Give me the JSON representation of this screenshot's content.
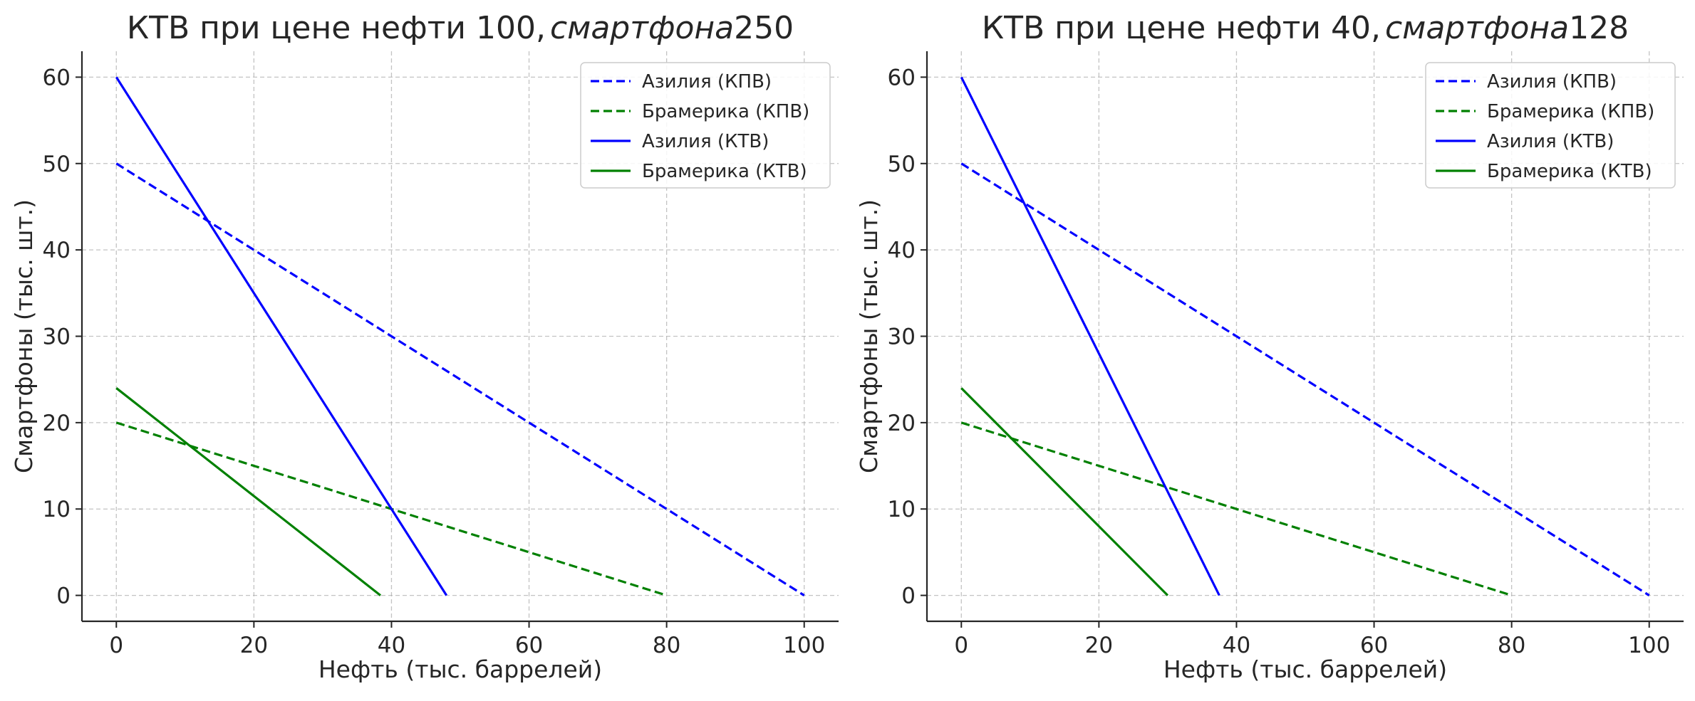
{
  "chart_data": [
    {
      "type": "line",
      "title": {
        "main": "КТВ при цене нефти 100,",
        "italic": "смартфона",
        "tail": "250"
      },
      "xlabel": "Нефть (тыс. баррелей)",
      "ylabel": "Смартфоны (тыс. шт.)",
      "xlim": [
        -5,
        105
      ],
      "ylim": [
        -3,
        63
      ],
      "xticks": [
        0,
        20,
        40,
        60,
        80,
        100
      ],
      "yticks": [
        0,
        10,
        20,
        30,
        40,
        50,
        60
      ],
      "grid": true,
      "legend_position": "upper-right",
      "series": [
        {
          "name": "Азилия (КПВ)",
          "color": "#0000ff",
          "style": "dashed",
          "points": [
            [
              0,
              50
            ],
            [
              100,
              0
            ]
          ]
        },
        {
          "name": "Брамерика (КПВ)",
          "color": "#008000",
          "style": "dashed",
          "points": [
            [
              0,
              20
            ],
            [
              80,
              0
            ]
          ]
        },
        {
          "name": "Азилия (КТВ)",
          "color": "#0000ff",
          "style": "solid",
          "points": [
            [
              0,
              60
            ],
            [
              48,
              0
            ]
          ]
        },
        {
          "name": "Брамерика (КТВ)",
          "color": "#008000",
          "style": "solid",
          "points": [
            [
              0,
              24
            ],
            [
              38.4,
              0
            ]
          ]
        }
      ]
    },
    {
      "type": "line",
      "title": {
        "main": "КТВ при цене нефти 40,",
        "italic": "смартфона",
        "tail": "128"
      },
      "xlabel": "Нефть (тыс. баррелей)",
      "ylabel": "Смартфоны (тыс. шт.)",
      "xlim": [
        -5,
        105
      ],
      "ylim": [
        -3,
        63
      ],
      "xticks": [
        0,
        20,
        40,
        60,
        80,
        100
      ],
      "yticks": [
        0,
        10,
        20,
        30,
        40,
        50,
        60
      ],
      "grid": true,
      "legend_position": "upper-right",
      "series": [
        {
          "name": "Азилия (КПВ)",
          "color": "#0000ff",
          "style": "dashed",
          "points": [
            [
              0,
              50
            ],
            [
              100,
              0
            ]
          ]
        },
        {
          "name": "Брамерика (КПВ)",
          "color": "#008000",
          "style": "dashed",
          "points": [
            [
              0,
              20
            ],
            [
              80,
              0
            ]
          ]
        },
        {
          "name": "Азилия (КТВ)",
          "color": "#0000ff",
          "style": "solid",
          "points": [
            [
              0,
              60
            ],
            [
              37.5,
              0
            ]
          ]
        },
        {
          "name": "Брамерика (КТВ)",
          "color": "#008000",
          "style": "solid",
          "points": [
            [
              0,
              24
            ],
            [
              30,
              0
            ]
          ]
        }
      ]
    }
  ]
}
